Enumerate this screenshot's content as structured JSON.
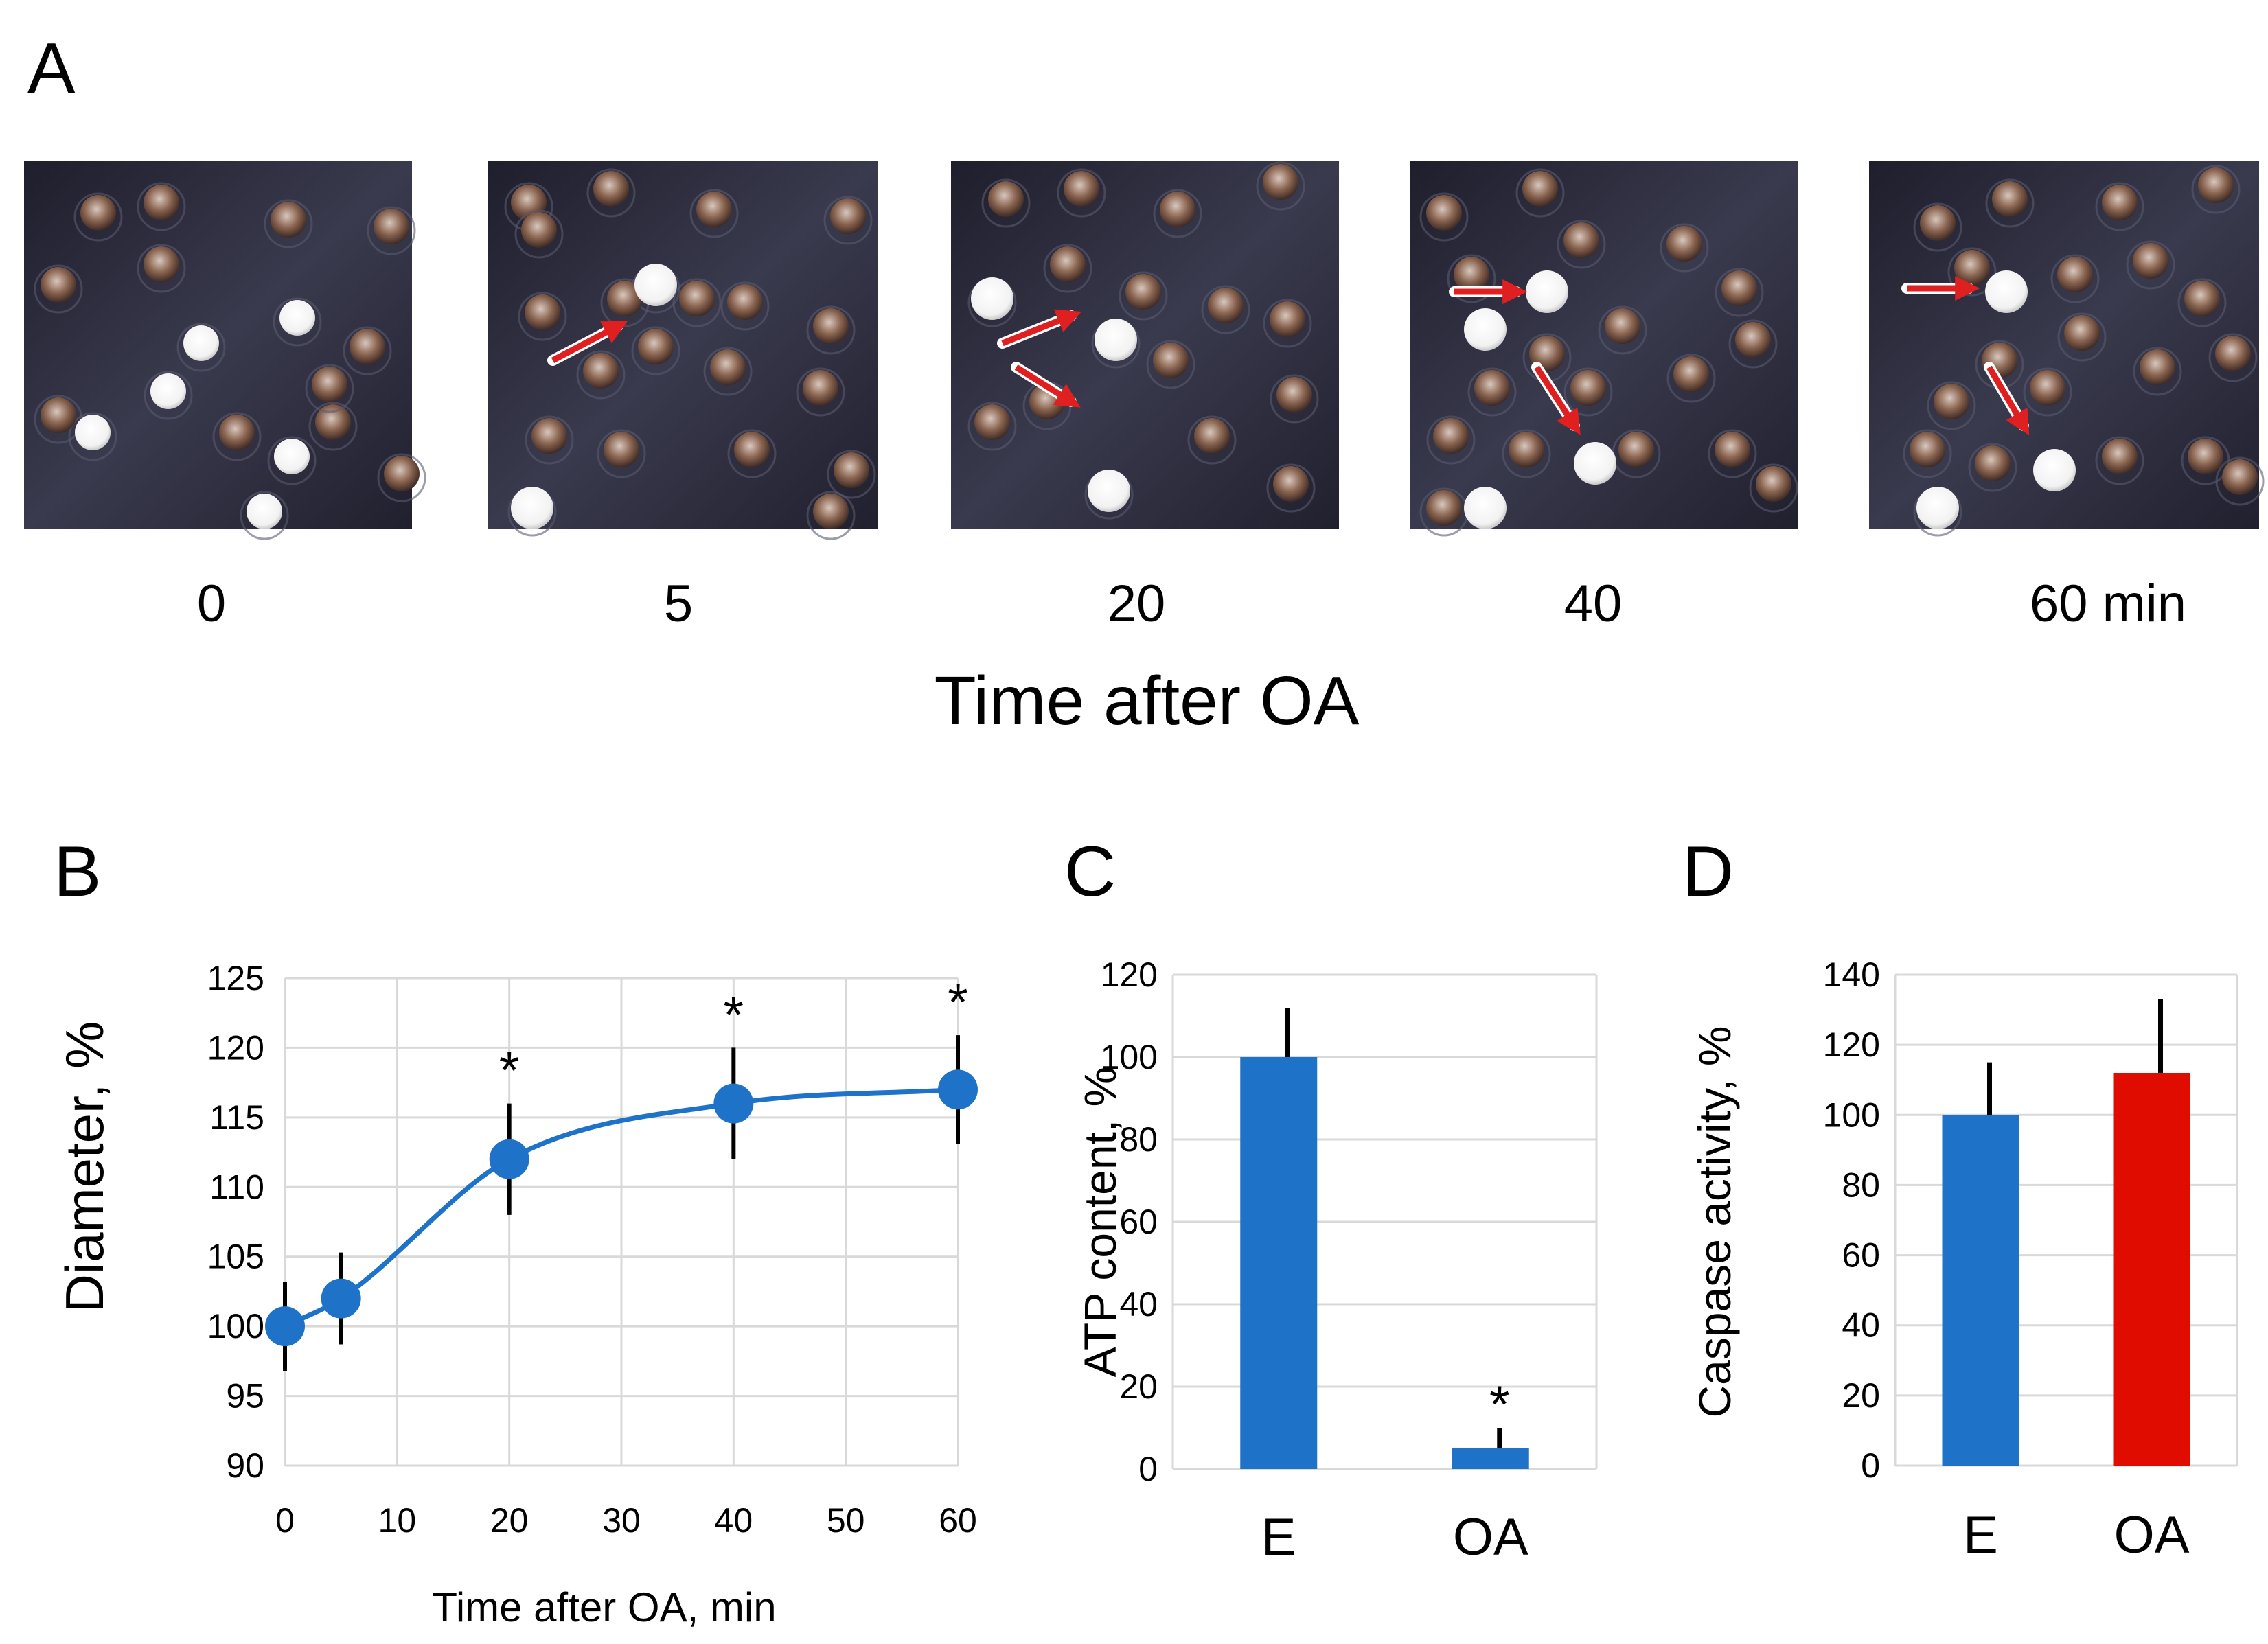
{
  "panel_a": {
    "letter": "A",
    "time_labels": [
      "0",
      "5",
      "20",
      "40",
      "60 min"
    ],
    "xlabel": "Time after OA",
    "arrow_color": "#e02020",
    "photo_bg": "#2a2a3a"
  },
  "chart_data": [
    {
      "panel": "B",
      "type": "line",
      "title": "",
      "xlabel": "Time after OA, min",
      "ylabel": "Diameter, %",
      "x": [
        0,
        5,
        20,
        40,
        60
      ],
      "y": [
        100,
        102,
        112,
        116,
        117
      ],
      "error": [
        3.2,
        3.3,
        4.0,
        4.0,
        3.9
      ],
      "significant": [
        false,
        false,
        true,
        true,
        true
      ],
      "significance_marker": "*",
      "xlim": [
        0,
        60
      ],
      "ylim": [
        90,
        125
      ],
      "xticks": [
        0,
        10,
        20,
        30,
        40,
        50,
        60
      ],
      "yticks": [
        90,
        95,
        100,
        105,
        110,
        115,
        120,
        125
      ],
      "grid": true,
      "color": "#1e73c8"
    },
    {
      "panel": "C",
      "type": "bar",
      "title": "",
      "xlabel": "",
      "ylabel": "ATP content, %",
      "categories": [
        "E",
        "OA"
      ],
      "values": [
        100,
        5
      ],
      "error": [
        12,
        5
      ],
      "significant": [
        false,
        true
      ],
      "significance_marker": "*",
      "ylim": [
        0,
        120
      ],
      "yticks": [
        0,
        20,
        40,
        60,
        80,
        100,
        120
      ],
      "grid": true,
      "colors": [
        "#1e73c8",
        "#1e73c8"
      ]
    },
    {
      "panel": "D",
      "type": "bar",
      "title": "",
      "xlabel": "",
      "ylabel": "Caspase activity, %",
      "categories": [
        "E",
        "OA"
      ],
      "values": [
        100,
        112
      ],
      "error": [
        15,
        21
      ],
      "significant": [
        false,
        false
      ],
      "significance_marker": "*",
      "ylim": [
        0,
        140
      ],
      "yticks": [
        0,
        20,
        40,
        60,
        80,
        100,
        120,
        140
      ],
      "grid": true,
      "colors": [
        "#1e73c8",
        "#e00c00"
      ]
    }
  ]
}
